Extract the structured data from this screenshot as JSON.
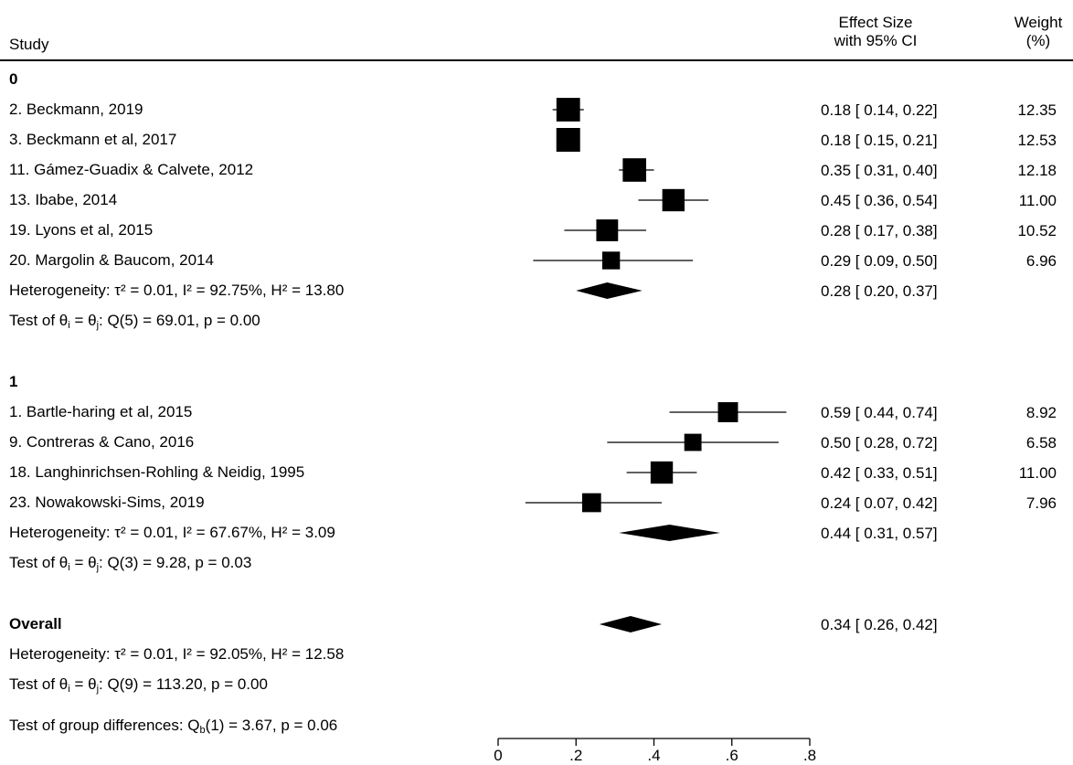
{
  "header": {
    "study": "Study",
    "effect_size": [
      "Effect Size",
      "with 95% CI"
    ],
    "weight": [
      "Weight",
      "(%)"
    ]
  },
  "chart_data": {
    "type": "forest",
    "x_ticks": [
      0,
      0.2,
      0.4,
      0.6,
      0.8
    ],
    "x_tick_labels": [
      "0",
      ".2",
      ".4",
      ".6",
      ".8"
    ],
    "xlim": [
      0,
      0.8
    ],
    "groups": [
      {
        "label": "0",
        "studies": [
          {
            "name": "2. Beckmann, 2019",
            "es": 0.18,
            "lo": 0.14,
            "hi": 0.22,
            "ci_text": "0.18 [ 0.14,  0.22]",
            "weight": "12.35"
          },
          {
            "name": "3. Beckmann et al, 2017",
            "es": 0.18,
            "lo": 0.15,
            "hi": 0.21,
            "ci_text": "0.18 [ 0.15,  0.21]",
            "weight": "12.53"
          },
          {
            "name": "11. Gámez-Guadix & Calvete, 2012",
            "es": 0.35,
            "lo": 0.31,
            "hi": 0.4,
            "ci_text": "0.35 [ 0.31,  0.40]",
            "weight": "12.18"
          },
          {
            "name": "13. Ibabe, 2014",
            "es": 0.45,
            "lo": 0.36,
            "hi": 0.54,
            "ci_text": "0.45 [ 0.36,  0.54]",
            "weight": "11.00"
          },
          {
            "name": "19. Lyons et al, 2015",
            "es": 0.28,
            "lo": 0.17,
            "hi": 0.38,
            "ci_text": "0.28 [ 0.17,  0.38]",
            "weight": "10.52"
          },
          {
            "name": "20. Margolin & Baucom, 2014",
            "es": 0.29,
            "lo": 0.09,
            "hi": 0.5,
            "ci_text": "0.29 [ 0.09,  0.50]",
            "weight": "6.96"
          }
        ],
        "pooled": {
          "es": 0.28,
          "lo": 0.2,
          "hi": 0.37,
          "ci_text": "0.28 [ 0.20,  0.37]"
        },
        "heterogeneity_text": "Heterogeneity: τ² = 0.01, I² = 92.75%, H² = 13.80",
        "test_text": ": Q(5) = 69.01, p = 0.00"
      },
      {
        "label": "1",
        "studies": [
          {
            "name": "1. Bartle-haring et al, 2015",
            "es": 0.59,
            "lo": 0.44,
            "hi": 0.74,
            "ci_text": "0.59 [ 0.44,  0.74]",
            "weight": "8.92"
          },
          {
            "name": "9. Contreras & Cano, 2016",
            "es": 0.5,
            "lo": 0.28,
            "hi": 0.72,
            "ci_text": "0.50 [ 0.28,  0.72]",
            "weight": "6.58"
          },
          {
            "name": "18. Langhinrichsen-Rohling & Neidig, 1995",
            "es": 0.42,
            "lo": 0.33,
            "hi": 0.51,
            "ci_text": "0.42 [ 0.33,  0.51]",
            "weight": "11.00"
          },
          {
            "name": "23. Nowakowski-Sims, 2019",
            "es": 0.24,
            "lo": 0.07,
            "hi": 0.42,
            "ci_text": "0.24 [ 0.07,  0.42]",
            "weight": "7.96"
          }
        ],
        "pooled": {
          "es": 0.44,
          "lo": 0.31,
          "hi": 0.57,
          "ci_text": "0.44 [ 0.31,  0.57]"
        },
        "heterogeneity_text": "Heterogeneity: τ² = 0.01, I² = 67.67%, H² = 3.09",
        "test_text": ": Q(3) = 9.28, p = 0.03"
      }
    ],
    "overall": {
      "label": "Overall",
      "es": 0.34,
      "lo": 0.26,
      "hi": 0.42,
      "ci_text": "0.34 [ 0.26,  0.42]",
      "heterogeneity_text": "Heterogeneity: τ² = 0.01, I² = 92.05%, H² = 12.58",
      "test_text": ": Q(9) = 113.20, p = 0.00"
    },
    "group_diff": {
      "prefix": "Test of group differences: Q",
      "sub": "b",
      "suffix": "(1) = 3.67, p = 0.06"
    },
    "test_prefix": "Test of θ",
    "test_sub_i": "i",
    "test_mid": " = θ",
    "test_sub_j": "j"
  }
}
